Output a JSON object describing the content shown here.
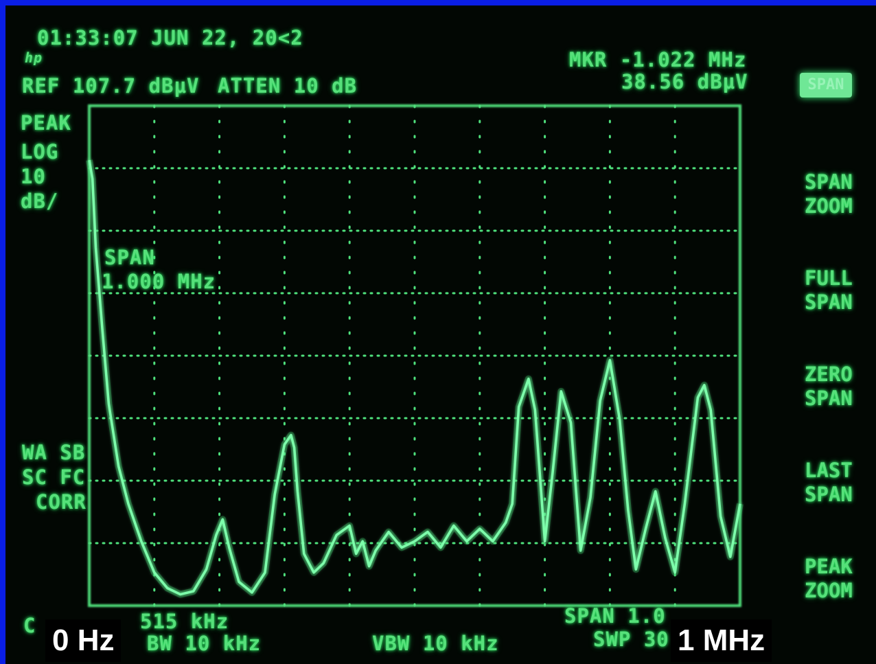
{
  "header": {
    "timestamp": "01:33:07 JUN 22, 20<2",
    "logo": "hp",
    "reference": "REF 107.7 dBµV",
    "attenuation": "ATTEN 10 dB",
    "marker_line1": "MKR -1.022 MHz",
    "marker_line2": "38.56 dBµV"
  },
  "left_panel": {
    "detector": "PEAK",
    "scale_line1": "LOG",
    "scale_line2": "10",
    "scale_line3": "dB/",
    "status_line1": "WA SB",
    "status_line2": "SC FC",
    "status_line3": "CORR"
  },
  "annotation": {
    "span_label": "SPAN",
    "span_value": "1.000 MHz"
  },
  "bottom": {
    "left_fragment": "C",
    "freq_fragment": "515 kHz",
    "rbw": "BW 10 kHz",
    "vbw": "VBW 10 kHz",
    "span": "SPAN 1.0",
    "sweep": "SWP 30"
  },
  "overlay_labels": {
    "start": "0 Hz",
    "stop": "1 MHz"
  },
  "softkeys": [
    {
      "label": "SPAN",
      "active": true
    },
    {
      "label": "SPAN\nZOOM"
    },
    {
      "label": "FULL\nSPAN"
    },
    {
      "label": "ZERO\nSPAN"
    },
    {
      "label": "LAST\nSPAN"
    },
    {
      "label": "PEAK\nZOOM"
    }
  ],
  "colors": {
    "trace": "#7dffab",
    "graticule": "#4fe07c",
    "screen_background": "#020703",
    "frame": "#0a1ee6"
  },
  "chart_data": {
    "type": "line",
    "title": "",
    "xlabel": "",
    "ylabel": "",
    "x_unit": "MHz",
    "y_unit": "dBµV",
    "xlim": [
      0,
      1.0
    ],
    "ylim": [
      27.7,
      107.7
    ],
    "grid": true,
    "series": [
      {
        "x": [
          0.0,
          0.005,
          0.01,
          0.02,
          0.03,
          0.045,
          0.06,
          0.08,
          0.1,
          0.12,
          0.14,
          0.16,
          0.18,
          0.195,
          0.205,
          0.215,
          0.23,
          0.25,
          0.27,
          0.285,
          0.3,
          0.31,
          0.315,
          0.32,
          0.33,
          0.345,
          0.36,
          0.38,
          0.4,
          0.41,
          0.42,
          0.43,
          0.44,
          0.46,
          0.48,
          0.5,
          0.52,
          0.54,
          0.56,
          0.58,
          0.6,
          0.62,
          0.64,
          0.65,
          0.66,
          0.675,
          0.685,
          0.7,
          0.712,
          0.725,
          0.74,
          0.755,
          0.77,
          0.785,
          0.8,
          0.815,
          0.828,
          0.84,
          0.855,
          0.87,
          0.885,
          0.9,
          0.915,
          0.935,
          0.945,
          0.955,
          0.97,
          0.985,
          1.0
        ],
        "y": [
          99.0,
          96.0,
          85.0,
          72.0,
          60.0,
          50.0,
          44.0,
          38.0,
          33.0,
          30.5,
          29.5,
          30.0,
          33.5,
          39.0,
          41.5,
          37.0,
          31.5,
          29.8,
          33.0,
          45.5,
          53.5,
          55.0,
          53.0,
          46.0,
          36.0,
          33.0,
          34.5,
          39.0,
          40.5,
          36.0,
          38.0,
          34.0,
          36.5,
          39.5,
          37.0,
          38.0,
          39.5,
          37.0,
          40.5,
          38.0,
          40.0,
          38.0,
          41.0,
          44.0,
          59.5,
          64.0,
          59.0,
          38.0,
          49.0,
          62.0,
          57.0,
          36.5,
          45.0,
          60.5,
          67.0,
          57.5,
          43.0,
          33.5,
          40.0,
          46.0,
          38.5,
          33.0,
          44.0,
          61.0,
          63.0,
          59.0,
          42.0,
          35.5,
          44.0
        ]
      }
    ]
  }
}
